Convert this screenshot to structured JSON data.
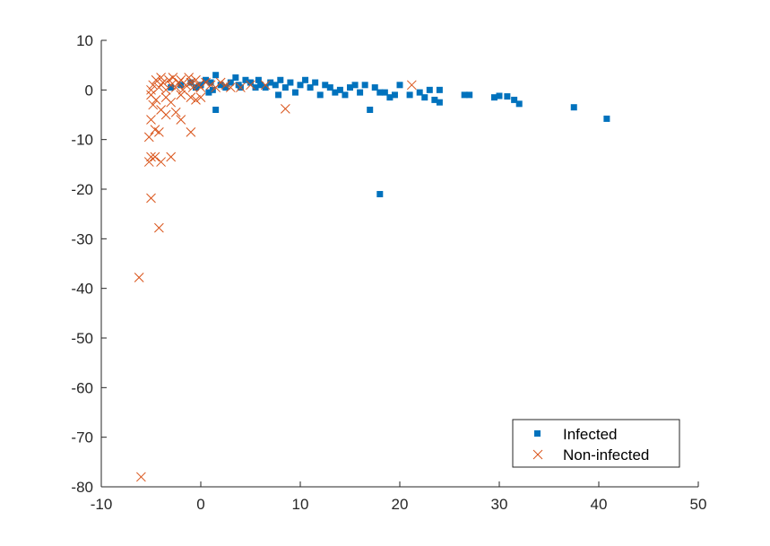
{
  "chart_data": {
    "type": "scatter",
    "title": "",
    "xlabel": "",
    "ylabel": "",
    "xlim": [
      -10,
      50
    ],
    "ylim": [
      -80,
      10
    ],
    "x_ticks": [
      -10,
      0,
      10,
      20,
      30,
      40,
      50
    ],
    "y_ticks": [
      10,
      0,
      -10,
      -20,
      -30,
      -40,
      -50,
      -60,
      -70,
      -80
    ],
    "grid": false,
    "legend_position": "bottom-right",
    "series": [
      {
        "name": "Infected",
        "marker": "square",
        "color": "#0072BD",
        "points": [
          [
            -3,
            0.5
          ],
          [
            -2,
            1
          ],
          [
            -1,
            1.5
          ],
          [
            -0.5,
            0.5
          ],
          [
            0,
            1
          ],
          [
            0.5,
            2
          ],
          [
            1,
            1.5
          ],
          [
            1.5,
            3
          ],
          [
            1.2,
            0
          ],
          [
            0.8,
            -0.5
          ],
          [
            1.5,
            -4
          ],
          [
            2,
            1
          ],
          [
            2.5,
            0.5
          ],
          [
            3,
            1.5
          ],
          [
            3.5,
            2.5
          ],
          [
            3.8,
            1
          ],
          [
            4,
            0.5
          ],
          [
            4.5,
            2
          ],
          [
            5,
            1.5
          ],
          [
            5.5,
            0.5
          ],
          [
            5.8,
            2
          ],
          [
            6,
            1
          ],
          [
            6.5,
            0.5
          ],
          [
            7,
            1.5
          ],
          [
            7.5,
            1
          ],
          [
            7.8,
            -1
          ],
          [
            8,
            2
          ],
          [
            8.5,
            0.5
          ],
          [
            9,
            1.5
          ],
          [
            9.5,
            -0.5
          ],
          [
            10,
            1
          ],
          [
            10.5,
            2
          ],
          [
            11,
            0.5
          ],
          [
            11.5,
            1.5
          ],
          [
            12,
            -1
          ],
          [
            12.5,
            1
          ],
          [
            13,
            0.5
          ],
          [
            13.5,
            -0.5
          ],
          [
            14,
            0
          ],
          [
            14.5,
            -1
          ],
          [
            15,
            0.5
          ],
          [
            15.5,
            1
          ],
          [
            16,
            -0.5
          ],
          [
            16.5,
            1
          ],
          [
            17,
            -4
          ],
          [
            17.5,
            0.5
          ],
          [
            18,
            -0.5
          ],
          [
            18.5,
            -0.5
          ],
          [
            19,
            -1.5
          ],
          [
            19.5,
            -1
          ],
          [
            20,
            1
          ],
          [
            21,
            -1
          ],
          [
            22,
            -0.5
          ],
          [
            22.5,
            -1.5
          ],
          [
            23,
            0
          ],
          [
            23.5,
            -2
          ],
          [
            24,
            -2.5
          ],
          [
            24,
            0
          ],
          [
            26.5,
            -1
          ],
          [
            27,
            -1
          ],
          [
            29.5,
            -1.5
          ],
          [
            30,
            -1.2
          ],
          [
            30.8,
            -1.3
          ],
          [
            31.5,
            -2
          ],
          [
            32,
            -2.8
          ],
          [
            37.5,
            -3.5
          ],
          [
            40.8,
            -5.8
          ],
          [
            18,
            -21
          ]
        ]
      },
      {
        "name": "Non-infected",
        "marker": "x",
        "color": "#D95319",
        "points": [
          [
            -5,
            0
          ],
          [
            -4.8,
            1
          ],
          [
            -4.5,
            2
          ],
          [
            -4.2,
            0.5
          ],
          [
            -4,
            2.5
          ],
          [
            -3.8,
            1.5
          ],
          [
            -3.5,
            0
          ],
          [
            -3.2,
            2
          ],
          [
            -3,
            1
          ],
          [
            -2.8,
            2.5
          ],
          [
            -2.5,
            0.5
          ],
          [
            -2.2,
            1.5
          ],
          [
            -2,
            2
          ],
          [
            -1.8,
            0
          ],
          [
            -1.5,
            1
          ],
          [
            -1.2,
            2.5
          ],
          [
            -1,
            1.5
          ],
          [
            -0.8,
            0.5
          ],
          [
            -0.5,
            2
          ],
          [
            -0.2,
            1
          ],
          [
            0,
            0.5
          ],
          [
            0.5,
            1.5
          ],
          [
            1,
            1
          ],
          [
            1.5,
            0.5
          ],
          [
            2,
            1.5
          ],
          [
            2.5,
            1
          ],
          [
            3,
            0.5
          ],
          [
            4,
            0.5
          ],
          [
            5,
            1
          ],
          [
            6.5,
            1
          ],
          [
            -5,
            -1
          ],
          [
            -4.5,
            -2
          ],
          [
            -4.8,
            -3
          ],
          [
            -3.5,
            -1.5
          ],
          [
            -3,
            -2.5
          ],
          [
            -2,
            -1
          ],
          [
            -1,
            -1.5
          ],
          [
            0,
            -1.5
          ],
          [
            -0.5,
            -2
          ],
          [
            -4,
            -4
          ],
          [
            -3.5,
            -5
          ],
          [
            -2.5,
            -4.5
          ],
          [
            -2,
            -6
          ],
          [
            -5,
            -6
          ],
          [
            -4.6,
            -8
          ],
          [
            -4.2,
            -8.5
          ],
          [
            -1,
            -8.5
          ],
          [
            -5.2,
            -9.5
          ],
          [
            -5.2,
            -14.5
          ],
          [
            -5,
            -13.5
          ],
          [
            -4.6,
            -13.5
          ],
          [
            -4,
            -14.5
          ],
          [
            -3,
            -13.5
          ],
          [
            -5,
            -21.8
          ],
          [
            -4.2,
            -27.8
          ],
          [
            -6.2,
            -37.8
          ],
          [
            -6,
            -78
          ],
          [
            8.5,
            -3.8
          ],
          [
            21.2,
            1
          ]
        ]
      }
    ]
  }
}
